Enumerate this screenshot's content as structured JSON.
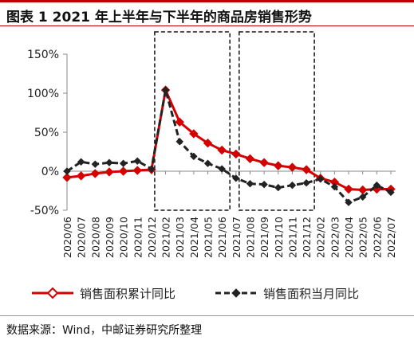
{
  "header": {
    "title": "图表 1 2021 年上半年与下半年的商品房销售形势"
  },
  "chart_data": {
    "type": "line",
    "categories": [
      "2020/06",
      "2020/07",
      "2020/08",
      "2020/09",
      "2020/10",
      "2020/11",
      "2020/12",
      "2021/02",
      "2021/03",
      "2021/04",
      "2021/05",
      "2021/06",
      "2021/07",
      "2021/08",
      "2021/09",
      "2021/10",
      "2021/11",
      "2021/12",
      "2022/02",
      "2022/03",
      "2022/04",
      "2022/05",
      "2022/06",
      "2022/07"
    ],
    "y_ticks": [
      "150%",
      "100%",
      "50%",
      "0%",
      "-50%"
    ],
    "ylim": [
      -50,
      150
    ],
    "series": [
      {
        "name": "销售面积累计同比",
        "color": "#d40000",
        "style": "solid",
        "marker": "diamond",
        "values": [
          -8,
          -6,
          -3,
          -1,
          0,
          1,
          2,
          104,
          63,
          48,
          36,
          27,
          22,
          16,
          11,
          7,
          5,
          2,
          -9,
          -14,
          -23,
          -24,
          -23,
          -23
        ]
      },
      {
        "name": "销售面积当月同比",
        "color": "#222222",
        "style": "dashed",
        "marker": "diamond",
        "values": [
          0,
          12,
          9,
          11,
          10,
          13,
          3,
          104,
          38,
          19,
          10,
          3,
          -9,
          -16,
          -17,
          -21,
          -18,
          -15,
          -10,
          -20,
          -40,
          -33,
          -18,
          -27
        ]
      }
    ],
    "highlight_boxes": [
      {
        "from": "2020/12",
        "to": "2021/06",
        "style": "dashed"
      },
      {
        "from": "2021/07",
        "to": "2021/12",
        "style": "dashed"
      }
    ]
  },
  "legend": {
    "items": [
      {
        "label": "销售面积累计同比"
      },
      {
        "label": "销售面积当月同比"
      }
    ]
  },
  "footer": {
    "source": "数据来源：Wind，中邮证券研究所整理"
  }
}
